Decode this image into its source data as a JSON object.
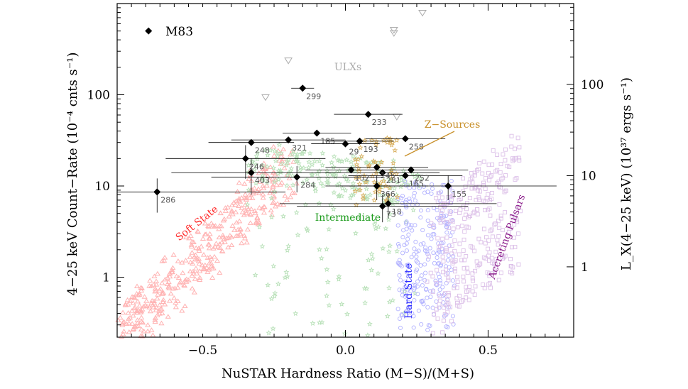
{
  "chart_data": {
    "type": "scatter",
    "xlabel": "NuSTAR Hardness Ratio (M−S)/(M+S)",
    "ylabel": "4−25 keV Count−Rate (10⁻⁴ cnts s⁻¹)",
    "y2label": "L_X(4−25 keV) (10³⁷ ergs s⁻¹)",
    "y_scale": "log",
    "xlim": [
      -0.8,
      0.8
    ],
    "ylim": [
      0.22,
      1000
    ],
    "x_ticks": [
      "−0.5",
      "0.0",
      "0.5"
    ],
    "x_tick_values": [
      -0.5,
      0.0,
      0.5
    ],
    "y_ticks": [
      "1",
      "10",
      "100"
    ],
    "y_tick_values": [
      1,
      10,
      100
    ],
    "y2_ticks": [
      "1",
      "10",
      "100"
    ],
    "y2_tick_values": [
      1.3,
      13,
      130
    ],
    "legend": {
      "label": "M83",
      "position": "top-left"
    },
    "regions": [
      {
        "name": "Soft State",
        "color": "#ff2a2a",
        "marker": "triangle"
      },
      {
        "name": "Intermediate",
        "color": "#1a9a1a",
        "marker": "star"
      },
      {
        "name": "Hard State",
        "color": "#2a2aff",
        "marker": "circle"
      },
      {
        "name": "Accreting Pulsars",
        "color": "#8a1a8a",
        "marker": "square"
      },
      {
        "name": "Z−Sources",
        "color": "#c8902a",
        "marker": "star"
      },
      {
        "name": "ULXs",
        "color": "#aaaaaa",
        "marker": "open-triangle-down"
      }
    ],
    "ulx_points": [
      {
        "x": 0.27,
        "y": 800
      },
      {
        "x": 0.17,
        "y": 480
      },
      {
        "x": 0.17,
        "y": 520
      },
      {
        "x": -0.2,
        "y": 240
      },
      {
        "x": -0.28,
        "y": 95
      },
      {
        "x": 0.18,
        "y": 58
      }
    ],
    "sources": [
      {
        "label": "299",
        "x": -0.15,
        "y": 118,
        "xerr": 0.04,
        "yerr": 0
      },
      {
        "label": "233",
        "x": 0.08,
        "y": 61,
        "xerr": 0.12,
        "yerr": 0
      },
      {
        "label": "185",
        "x": -0.1,
        "y": 38,
        "xerr": 0.12,
        "yerr": 0
      },
      {
        "label": "193",
        "x": 0.05,
        "y": 31,
        "xerr": 0.12,
        "yerr": 0
      },
      {
        "label": "258",
        "x": 0.21,
        "y": 33,
        "xerr": 0.14,
        "yerr": 0
      },
      {
        "label": "321",
        "x": -0.2,
        "y": 32,
        "xerr": 0.2,
        "yerr": 0
      },
      {
        "label": "248",
        "x": -0.33,
        "y": 30,
        "xerr": 0.15,
        "yerr": 0
      },
      {
        "label": "29",
        "x": 0.0,
        "y": 29,
        "xerr": 0.12,
        "yerr": 0
      },
      {
        "label": "246",
        "x": -0.35,
        "y": 20,
        "xerr": 0.28,
        "yerr": 8
      },
      {
        "label": "145",
        "x": 0.11,
        "y": 16,
        "xerr": 0.18,
        "yerr": 0
      },
      {
        "label": "252",
        "x": 0.23,
        "y": 15,
        "xerr": 0.2,
        "yerr": 0
      },
      {
        "label": "152",
        "x": 0.02,
        "y": 15,
        "xerr": 0.16,
        "yerr": 0
      },
      {
        "label": "281",
        "x": 0.13,
        "y": 14,
        "xerr": 0.2,
        "yerr": 0
      },
      {
        "label": "403",
        "x": -0.33,
        "y": 14,
        "xerr": 0.28,
        "yerr": 6
      },
      {
        "label": "284",
        "x": -0.17,
        "y": 12.5,
        "xerr": 0.3,
        "yerr": 4
      },
      {
        "label": "165",
        "x": 0.21,
        "y": 13,
        "xerr": 0.2,
        "yerr": 0
      },
      {
        "label": "366",
        "x": 0.11,
        "y": 10,
        "xerr": 0.18,
        "yerr": 3
      },
      {
        "label": "155",
        "x": 0.36,
        "y": 10,
        "xerr": 0.38,
        "yerr": 3
      },
      {
        "label": "286",
        "x": -0.66,
        "y": 8.6,
        "xerr": 0.45,
        "yerr": 3.5
      },
      {
        "label": "18",
        "x": 0.15,
        "y": 6.4,
        "xerr": 0.38,
        "yerr": 2
      },
      {
        "label": "73",
        "x": 0.13,
        "y": 6.0,
        "xerr": 0.3,
        "yerr": 2
      }
    ],
    "legend_marker": {
      "x": -0.69,
      "y": 500
    }
  }
}
